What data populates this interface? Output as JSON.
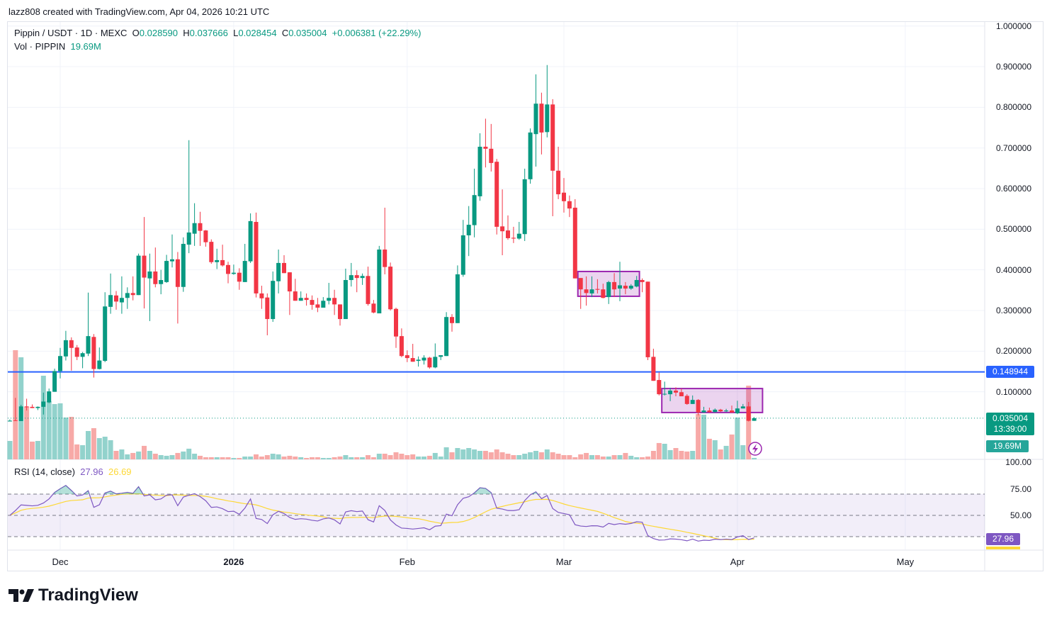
{
  "credit": "lazz808 created with TradingView.com, Apr 04, 2026 10:21 UTC",
  "legend": {
    "symbol": "Pippin / USDT · 1D · MEXC",
    "o_label": "O",
    "o": "0.028590",
    "h_label": "H",
    "h": "0.037666",
    "l_label": "L",
    "l": "0.028454",
    "c_label": "C",
    "c": "0.035004",
    "change": "+0.006381 (+22.29%)",
    "vol_label": "Vol · PIPPIN",
    "vol": "19.69M"
  },
  "rsi_legend": {
    "label": "RSI (14, close)",
    "rsi": "27.96",
    "ma": "26.69"
  },
  "badges": {
    "hline": "0.148944",
    "price": "0.035004",
    "countdown": "13:39:00",
    "volume": "19.69M",
    "rsi": "27.96"
  },
  "rsi_axis": [
    "100.00",
    "75.00",
    "50.00"
  ],
  "footer_logo": "TradingView",
  "colors": {
    "up": "#089981",
    "down": "#F23645",
    "vol_up": "#92d2cc",
    "vol_down": "#f7a9a7",
    "hline": "#2962ff",
    "rsi": "#7e57c2",
    "rsi_ma": "#fdd835",
    "drawing": "#9c27b0"
  },
  "icons": [
    "lightning-icon",
    "tradingview-logo-icon"
  ],
  "chart_data": {
    "type": "candlestick",
    "symbol": "Pippin / USDT",
    "interval": "1D",
    "exchange": "MEXC",
    "y_scale": "linear",
    "ylim": [
      0,
      1.0
    ],
    "y_ticks": [
      "1.000000",
      "0.900000",
      "0.800000",
      "0.700000",
      "0.600000",
      "0.500000",
      "0.400000",
      "0.300000",
      "0.200000",
      "0.100000"
    ],
    "x_ticks": [
      {
        "label": "Dec",
        "date": "2025-12-01"
      },
      {
        "label": "2026",
        "date": "2026-01-01",
        "bold": true
      },
      {
        "label": "Feb",
        "date": "2026-02-01"
      },
      {
        "label": "Mar",
        "date": "2026-03-01"
      },
      {
        "label": "Apr",
        "date": "2026-04-01"
      },
      {
        "label": "May",
        "date": "2026-05-01"
      }
    ],
    "grid": true,
    "columns": [
      "date",
      "open",
      "high",
      "low",
      "close",
      "volume_M"
    ],
    "candles": [
      [
        "2025-11-22",
        0.027,
        0.032,
        0.027,
        0.029,
        247
      ],
      [
        "2025-11-23",
        0.03,
        0.085,
        0.028,
        0.029,
        1463
      ],
      [
        "2025-11-24",
        0.028,
        0.068,
        0.028,
        0.064,
        1368
      ],
      [
        "2025-11-25",
        0.064,
        0.083,
        0.054,
        0.062,
        703
      ],
      [
        "2025-11-26",
        0.063,
        0.069,
        0.06,
        0.06,
        238
      ],
      [
        "2025-11-27",
        0.06,
        0.064,
        0.055,
        0.063,
        247
      ],
      [
        "2025-11-28",
        0.063,
        0.098,
        0.044,
        0.076,
        1121
      ],
      [
        "2025-11-29",
        0.074,
        0.108,
        0.072,
        0.101,
        779
      ],
      [
        "2025-11-30",
        0.1,
        0.157,
        0.1,
        0.151,
        741
      ],
      [
        "2025-12-01",
        0.151,
        0.208,
        0.133,
        0.188,
        751
      ],
      [
        "2025-12-02",
        0.187,
        0.25,
        0.177,
        0.227,
        561
      ],
      [
        "2025-12-03",
        0.227,
        0.234,
        0.152,
        0.208,
        570
      ],
      [
        "2025-12-04",
        0.209,
        0.215,
        0.178,
        0.186,
        200
      ],
      [
        "2025-12-05",
        0.186,
        0.198,
        0.158,
        0.195,
        190
      ],
      [
        "2025-12-06",
        0.194,
        0.344,
        0.188,
        0.237,
        380
      ],
      [
        "2025-12-07",
        0.235,
        0.242,
        0.135,
        0.156,
        418
      ],
      [
        "2025-12-08",
        0.156,
        0.209,
        0.155,
        0.177,
        285
      ],
      [
        "2025-12-09",
        0.176,
        0.345,
        0.173,
        0.31,
        304
      ],
      [
        "2025-12-10",
        0.309,
        0.391,
        0.292,
        0.338,
        257
      ],
      [
        "2025-12-11",
        0.337,
        0.348,
        0.302,
        0.322,
        114
      ],
      [
        "2025-12-12",
        0.32,
        0.384,
        0.292,
        0.331,
        133
      ],
      [
        "2025-12-13",
        0.331,
        0.357,
        0.304,
        0.343,
        67
      ],
      [
        "2025-12-14",
        0.343,
        0.384,
        0.325,
        0.338,
        86
      ],
      [
        "2025-12-15",
        0.338,
        0.44,
        0.338,
        0.435,
        105
      ],
      [
        "2025-12-16",
        0.435,
        0.53,
        0.305,
        0.381,
        181
      ],
      [
        "2025-12-17",
        0.379,
        0.44,
        0.274,
        0.396,
        114
      ],
      [
        "2025-12-18",
        0.396,
        0.455,
        0.357,
        0.365,
        76
      ],
      [
        "2025-12-19",
        0.365,
        0.4,
        0.34,
        0.375,
        57
      ],
      [
        "2025-12-20",
        0.37,
        0.437,
        0.368,
        0.422,
        48
      ],
      [
        "2025-12-21",
        0.421,
        0.487,
        0.406,
        0.426,
        57
      ],
      [
        "2025-12-22",
        0.426,
        0.444,
        0.268,
        0.358,
        86
      ],
      [
        "2025-12-23",
        0.358,
        0.48,
        0.346,
        0.464,
        105
      ],
      [
        "2025-12-24",
        0.462,
        0.719,
        0.441,
        0.492,
        143
      ],
      [
        "2025-12-25",
        0.489,
        0.564,
        0.459,
        0.515,
        76
      ],
      [
        "2025-12-26",
        0.515,
        0.543,
        0.459,
        0.496,
        48
      ],
      [
        "2025-12-27",
        0.497,
        0.498,
        0.457,
        0.468,
        29
      ],
      [
        "2025-12-28",
        0.469,
        0.475,
        0.415,
        0.419,
        29
      ],
      [
        "2025-12-29",
        0.419,
        0.452,
        0.402,
        0.424,
        29
      ],
      [
        "2025-12-30",
        0.424,
        0.462,
        0.408,
        0.411,
        29
      ],
      [
        "2025-12-31",
        0.412,
        0.42,
        0.367,
        0.39,
        29
      ],
      [
        "2026-01-01",
        0.39,
        0.413,
        0.388,
        0.393,
        19
      ],
      [
        "2026-01-02",
        0.393,
        0.404,
        0.351,
        0.371,
        19
      ],
      [
        "2026-01-03",
        0.37,
        0.464,
        0.37,
        0.422,
        38
      ],
      [
        "2026-01-04",
        0.421,
        0.539,
        0.417,
        0.52,
        38
      ],
      [
        "2026-01-05",
        0.518,
        0.541,
        0.332,
        0.342,
        67
      ],
      [
        "2026-01-06",
        0.342,
        0.361,
        0.304,
        0.33,
        38
      ],
      [
        "2026-01-07",
        0.332,
        0.342,
        0.239,
        0.279,
        57
      ],
      [
        "2026-01-08",
        0.279,
        0.396,
        0.272,
        0.373,
        76
      ],
      [
        "2026-01-09",
        0.372,
        0.45,
        0.342,
        0.417,
        67
      ],
      [
        "2026-01-10",
        0.417,
        0.436,
        0.392,
        0.392,
        38
      ],
      [
        "2026-01-11",
        0.394,
        0.394,
        0.289,
        0.347,
        48
      ],
      [
        "2026-01-12",
        0.347,
        0.378,
        0.324,
        0.324,
        38
      ],
      [
        "2026-01-13",
        0.324,
        0.347,
        0.324,
        0.331,
        29
      ],
      [
        "2026-01-14",
        0.331,
        0.342,
        0.312,
        0.326,
        19
      ],
      [
        "2026-01-15",
        0.326,
        0.337,
        0.302,
        0.314,
        29
      ],
      [
        "2026-01-16",
        0.315,
        0.331,
        0.296,
        0.307,
        29
      ],
      [
        "2026-01-17",
        0.307,
        0.333,
        0.307,
        0.324,
        19
      ],
      [
        "2026-01-18",
        0.324,
        0.368,
        0.315,
        0.331,
        19
      ],
      [
        "2026-01-19",
        0.331,
        0.351,
        0.289,
        0.315,
        29
      ],
      [
        "2026-01-20",
        0.315,
        0.315,
        0.263,
        0.279,
        38
      ],
      [
        "2026-01-21",
        0.279,
        0.403,
        0.279,
        0.375,
        57
      ],
      [
        "2026-01-22",
        0.375,
        0.417,
        0.359,
        0.387,
        29
      ],
      [
        "2026-01-23",
        0.387,
        0.399,
        0.345,
        0.38,
        29
      ],
      [
        "2026-01-24",
        0.38,
        0.391,
        0.363,
        0.385,
        29
      ],
      [
        "2026-01-25",
        0.385,
        0.408,
        0.312,
        0.316,
        57
      ],
      [
        "2026-01-26",
        0.317,
        0.326,
        0.293,
        0.295,
        29
      ],
      [
        "2026-01-27",
        0.293,
        0.459,
        0.293,
        0.45,
        76
      ],
      [
        "2026-01-28",
        0.45,
        0.553,
        0.389,
        0.407,
        76
      ],
      [
        "2026-01-29",
        0.408,
        0.418,
        0.3,
        0.303,
        57
      ],
      [
        "2026-01-30",
        0.304,
        0.307,
        0.208,
        0.236,
        95
      ],
      [
        "2026-01-31",
        0.237,
        0.256,
        0.185,
        0.188,
        76
      ],
      [
        "2026-02-01",
        0.19,
        0.202,
        0.173,
        0.183,
        57
      ],
      [
        "2026-02-02",
        0.183,
        0.218,
        0.174,
        0.174,
        67
      ],
      [
        "2026-02-03",
        0.176,
        0.187,
        0.162,
        0.179,
        38
      ],
      [
        "2026-02-04",
        0.177,
        0.19,
        0.167,
        0.184,
        38
      ],
      [
        "2026-02-05",
        0.184,
        0.186,
        0.157,
        0.16,
        48
      ],
      [
        "2026-02-06",
        0.16,
        0.219,
        0.158,
        0.186,
        86
      ],
      [
        "2026-02-07",
        0.186,
        0.19,
        0.178,
        0.19,
        38
      ],
      [
        "2026-02-08",
        0.188,
        0.296,
        0.188,
        0.284,
        162
      ],
      [
        "2026-02-09",
        0.284,
        0.291,
        0.248,
        0.269,
        95
      ],
      [
        "2026-02-10",
        0.269,
        0.411,
        0.269,
        0.389,
        152
      ],
      [
        "2026-02-11",
        0.388,
        0.523,
        0.383,
        0.485,
        133
      ],
      [
        "2026-02-12",
        0.485,
        0.557,
        0.434,
        0.511,
        152
      ],
      [
        "2026-02-13",
        0.51,
        0.649,
        0.48,
        0.584,
        133
      ],
      [
        "2026-02-14",
        0.581,
        0.736,
        0.57,
        0.703,
        114
      ],
      [
        "2026-02-15",
        0.703,
        0.772,
        0.652,
        0.698,
        114
      ],
      [
        "2026-02-16",
        0.698,
        0.759,
        0.642,
        0.663,
        95
      ],
      [
        "2026-02-17",
        0.666,
        0.673,
        0.487,
        0.506,
        133
      ],
      [
        "2026-02-18",
        0.507,
        0.598,
        0.436,
        0.495,
        95
      ],
      [
        "2026-02-19",
        0.497,
        0.534,
        0.474,
        0.478,
        76
      ],
      [
        "2026-02-20",
        0.479,
        0.506,
        0.466,
        0.477,
        57
      ],
      [
        "2026-02-21",
        0.477,
        0.518,
        0.474,
        0.489,
        57
      ],
      [
        "2026-02-22",
        0.488,
        0.649,
        0.471,
        0.623,
        76
      ],
      [
        "2026-02-23",
        0.623,
        0.748,
        0.612,
        0.738,
        95
      ],
      [
        "2026-02-24",
        0.734,
        0.881,
        0.654,
        0.809,
        114
      ],
      [
        "2026-02-25",
        0.809,
        0.836,
        0.684,
        0.738,
        95
      ],
      [
        "2026-02-26",
        0.739,
        0.904,
        0.726,
        0.807,
        133
      ],
      [
        "2026-02-27",
        0.807,
        0.82,
        0.532,
        0.644,
        95
      ],
      [
        "2026-02-28",
        0.644,
        0.703,
        0.574,
        0.586,
        76
      ],
      [
        "2026-03-01",
        0.59,
        0.626,
        0.541,
        0.569,
        57
      ],
      [
        "2026-03-02",
        0.569,
        0.583,
        0.53,
        0.551,
        57
      ],
      [
        "2026-03-03",
        0.553,
        0.574,
        0.379,
        0.379,
        29
      ],
      [
        "2026-03-04",
        0.38,
        0.38,
        0.304,
        0.352,
        67
      ],
      [
        "2026-03-05",
        0.352,
        0.384,
        0.312,
        0.343,
        86
      ],
      [
        "2026-03-06",
        0.342,
        0.384,
        0.333,
        0.352,
        57
      ],
      [
        "2026-03-07",
        0.353,
        0.377,
        0.342,
        0.351,
        57
      ],
      [
        "2026-03-08",
        0.352,
        0.366,
        0.33,
        0.331,
        38
      ],
      [
        "2026-03-09",
        0.333,
        0.373,
        0.316,
        0.37,
        38
      ],
      [
        "2026-03-10",
        0.37,
        0.392,
        0.333,
        0.352,
        57
      ],
      [
        "2026-03-11",
        0.354,
        0.42,
        0.323,
        0.362,
        57
      ],
      [
        "2026-03-12",
        0.361,
        0.37,
        0.34,
        0.354,
        86
      ],
      [
        "2026-03-13",
        0.354,
        0.365,
        0.351,
        0.361,
        48
      ],
      [
        "2026-03-14",
        0.359,
        0.385,
        0.357,
        0.375,
        29
      ],
      [
        "2026-03-15",
        0.375,
        0.379,
        0.345,
        0.37,
        29
      ],
      [
        "2026-03-16",
        0.371,
        0.371,
        0.178,
        0.185,
        38
      ],
      [
        "2026-03-17",
        0.186,
        0.206,
        0.127,
        0.127,
        114
      ],
      [
        "2026-03-18",
        0.129,
        0.148,
        0.091,
        0.094,
        219
      ],
      [
        "2026-03-19",
        0.094,
        0.125,
        0.091,
        0.095,
        209
      ],
      [
        "2026-03-20",
        0.094,
        0.11,
        0.077,
        0.103,
        124
      ],
      [
        "2026-03-21",
        0.103,
        0.111,
        0.089,
        0.098,
        152
      ],
      [
        "2026-03-22",
        0.099,
        0.108,
        0.089,
        0.089,
        114
      ],
      [
        "2026-03-23",
        0.09,
        0.094,
        0.068,
        0.07,
        105
      ],
      [
        "2026-03-24",
        0.07,
        0.091,
        0.07,
        0.08,
        114
      ],
      [
        "2026-03-25",
        0.08,
        0.082,
        0.042,
        0.049,
        608
      ],
      [
        "2026-03-26",
        0.049,
        0.063,
        0.049,
        0.054,
        599
      ],
      [
        "2026-03-27",
        0.054,
        0.061,
        0.049,
        0.05,
        276
      ],
      [
        "2026-03-28",
        0.05,
        0.059,
        0.049,
        0.056,
        257
      ],
      [
        "2026-03-29",
        0.056,
        0.058,
        0.05,
        0.052,
        133
      ],
      [
        "2026-03-30",
        0.052,
        0.058,
        0.05,
        0.054,
        181
      ],
      [
        "2026-03-31",
        0.054,
        0.066,
        0.049,
        0.049,
        333
      ],
      [
        "2026-04-01",
        0.047,
        0.078,
        0.045,
        0.059,
        561
      ],
      [
        "2026-04-02",
        0.059,
        0.07,
        0.059,
        0.064,
        190
      ],
      [
        "2026-04-03",
        0.064,
        0.075,
        0.027,
        0.0286,
        988
      ],
      [
        "2026-04-04",
        0.02859,
        0.037666,
        0.028454,
        0.035004,
        19.69
      ]
    ],
    "horizontal_line": 0.148944,
    "current_price": 0.035004,
    "rectangles": [
      {
        "from": "2026-03-04",
        "to": "2026-03-15",
        "top": 0.396,
        "bottom": 0.335
      },
      {
        "from": "2026-03-19",
        "to": "2026-04-06",
        "top": 0.108,
        "bottom": 0.049
      }
    ],
    "rsi": {
      "length": 14,
      "source": "close",
      "ma_length": 14,
      "bands": [
        70,
        50,
        30
      ],
      "last": 27.96,
      "ma_last": 26.69
    }
  }
}
